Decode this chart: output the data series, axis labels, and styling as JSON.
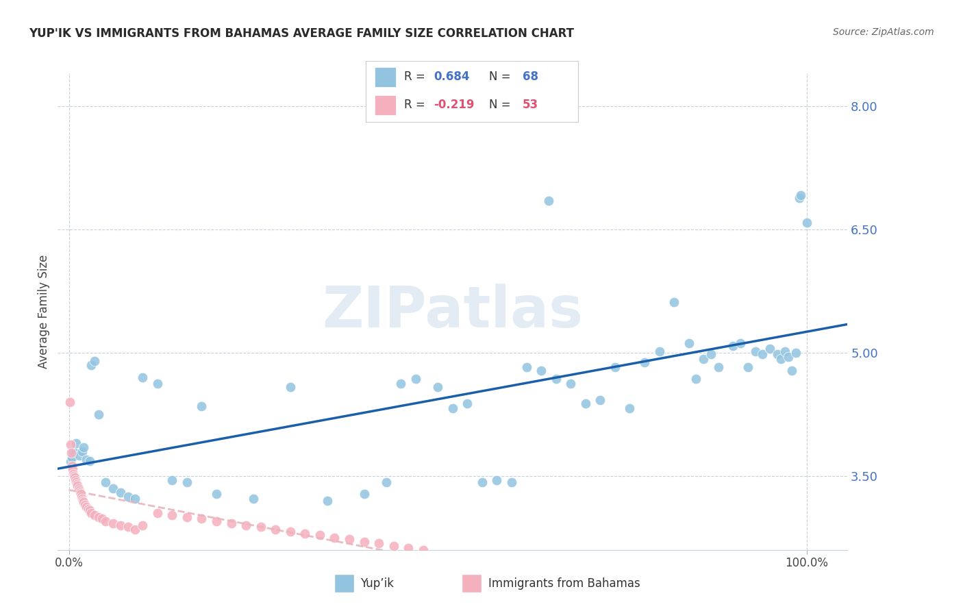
{
  "title": "YUP'IK VS IMMIGRANTS FROM BAHAMAS AVERAGE FAMILY SIZE CORRELATION CHART",
  "source": "Source: ZipAtlas.com",
  "ylabel": "Average Family Size",
  "legend_label1": "Yup’ik",
  "legend_label2": "Immigrants from Bahamas",
  "r1": 0.684,
  "n1": 68,
  "r2": -0.219,
  "n2": 53,
  "yticks": [
    3.5,
    5.0,
    6.5,
    8.0
  ],
  "ymin": 2.6,
  "ymax": 8.4,
  "xmin": -0.015,
  "xmax": 1.055,
  "blue_color": "#92c4e0",
  "pink_color": "#f5b0be",
  "line_blue": "#1a5faa",
  "line_pink_color": "#e8b4bc",
  "blue_pts": [
    [
      0.002,
      3.67
    ],
    [
      0.004,
      3.72
    ],
    [
      0.006,
      3.8
    ],
    [
      0.01,
      3.9
    ],
    [
      0.014,
      3.75
    ],
    [
      0.018,
      3.8
    ],
    [
      0.02,
      3.85
    ],
    [
      0.024,
      3.7
    ],
    [
      0.028,
      3.68
    ],
    [
      0.03,
      4.85
    ],
    [
      0.035,
      4.9
    ],
    [
      0.04,
      4.25
    ],
    [
      0.05,
      3.42
    ],
    [
      0.06,
      3.35
    ],
    [
      0.07,
      3.3
    ],
    [
      0.08,
      3.25
    ],
    [
      0.09,
      3.22
    ],
    [
      0.1,
      4.7
    ],
    [
      0.12,
      4.62
    ],
    [
      0.14,
      3.45
    ],
    [
      0.16,
      3.42
    ],
    [
      0.18,
      4.35
    ],
    [
      0.2,
      3.28
    ],
    [
      0.25,
      3.22
    ],
    [
      0.3,
      4.58
    ],
    [
      0.35,
      3.2
    ],
    [
      0.4,
      3.28
    ],
    [
      0.43,
      3.42
    ],
    [
      0.45,
      4.62
    ],
    [
      0.47,
      4.68
    ],
    [
      0.5,
      4.58
    ],
    [
      0.52,
      4.32
    ],
    [
      0.54,
      4.38
    ],
    [
      0.56,
      3.42
    ],
    [
      0.58,
      3.45
    ],
    [
      0.6,
      3.42
    ],
    [
      0.62,
      4.82
    ],
    [
      0.64,
      4.78
    ],
    [
      0.65,
      6.85
    ],
    [
      0.66,
      4.68
    ],
    [
      0.68,
      4.62
    ],
    [
      0.7,
      4.38
    ],
    [
      0.72,
      4.42
    ],
    [
      0.74,
      4.82
    ],
    [
      0.76,
      4.32
    ],
    [
      0.78,
      4.88
    ],
    [
      0.8,
      5.02
    ],
    [
      0.82,
      5.62
    ],
    [
      0.84,
      5.12
    ],
    [
      0.85,
      4.68
    ],
    [
      0.86,
      4.92
    ],
    [
      0.87,
      4.98
    ],
    [
      0.88,
      4.82
    ],
    [
      0.9,
      5.08
    ],
    [
      0.91,
      5.12
    ],
    [
      0.92,
      4.82
    ],
    [
      0.93,
      5.02
    ],
    [
      0.94,
      4.98
    ],
    [
      0.95,
      5.05
    ],
    [
      0.96,
      4.98
    ],
    [
      0.965,
      4.92
    ],
    [
      0.97,
      5.02
    ],
    [
      0.975,
      4.95
    ],
    [
      0.98,
      4.78
    ],
    [
      0.985,
      5.0
    ],
    [
      0.99,
      6.88
    ],
    [
      0.992,
      6.92
    ],
    [
      1.0,
      6.58
    ]
  ],
  "pink_pts": [
    [
      0.001,
      4.4
    ],
    [
      0.002,
      3.88
    ],
    [
      0.003,
      3.78
    ],
    [
      0.004,
      3.62
    ],
    [
      0.005,
      3.58
    ],
    [
      0.006,
      3.52
    ],
    [
      0.007,
      3.5
    ],
    [
      0.008,
      3.48
    ],
    [
      0.009,
      3.45
    ],
    [
      0.01,
      3.42
    ],
    [
      0.011,
      3.4
    ],
    [
      0.012,
      3.38
    ],
    [
      0.013,
      3.35
    ],
    [
      0.014,
      3.32
    ],
    [
      0.015,
      3.3
    ],
    [
      0.016,
      3.28
    ],
    [
      0.017,
      3.25
    ],
    [
      0.018,
      3.22
    ],
    [
      0.019,
      3.2
    ],
    [
      0.02,
      3.18
    ],
    [
      0.022,
      3.15
    ],
    [
      0.024,
      3.12
    ],
    [
      0.026,
      3.1
    ],
    [
      0.028,
      3.08
    ],
    [
      0.03,
      3.05
    ],
    [
      0.035,
      3.02
    ],
    [
      0.04,
      3.0
    ],
    [
      0.045,
      2.98
    ],
    [
      0.05,
      2.95
    ],
    [
      0.06,
      2.92
    ],
    [
      0.07,
      2.9
    ],
    [
      0.08,
      2.88
    ],
    [
      0.09,
      2.85
    ],
    [
      0.1,
      2.9
    ],
    [
      0.12,
      3.05
    ],
    [
      0.14,
      3.02
    ],
    [
      0.16,
      3.0
    ],
    [
      0.18,
      2.98
    ],
    [
      0.2,
      2.95
    ],
    [
      0.22,
      2.92
    ],
    [
      0.24,
      2.9
    ],
    [
      0.26,
      2.88
    ],
    [
      0.28,
      2.85
    ],
    [
      0.3,
      2.82
    ],
    [
      0.32,
      2.8
    ],
    [
      0.34,
      2.78
    ],
    [
      0.36,
      2.75
    ],
    [
      0.38,
      2.73
    ],
    [
      0.4,
      2.7
    ],
    [
      0.42,
      2.68
    ],
    [
      0.44,
      2.65
    ],
    [
      0.46,
      2.62
    ],
    [
      0.48,
      2.6
    ]
  ]
}
